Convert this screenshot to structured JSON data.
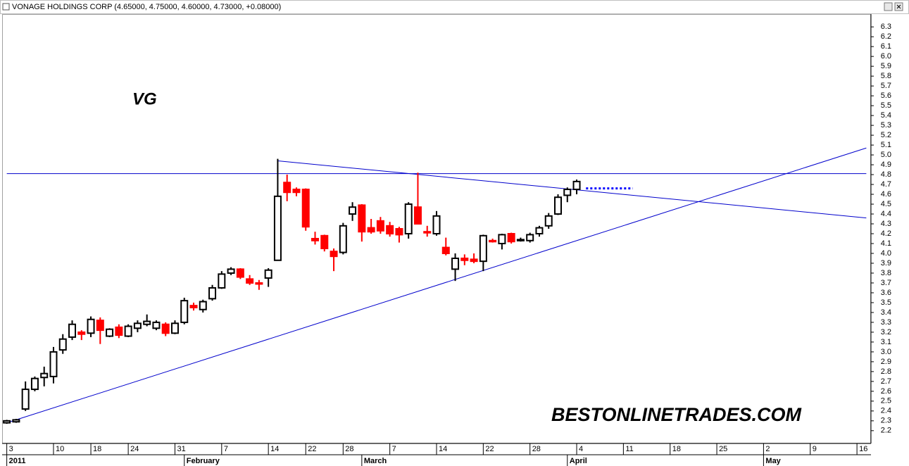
{
  "chart_data": {
    "type": "candlestick",
    "title": "VONAGE HOLDINGS CORP (4.65000, 4.75000, 4.60000, 4.73000, +0.08000)",
    "annotations": [
      {
        "text": "VG",
        "color": "#0000ff"
      },
      {
        "text": "BESTONLINETRADES.COM",
        "color": "#0000ff"
      }
    ],
    "categories": [
      "3",
      null,
      null,
      null,
      null,
      "10",
      null,
      null,
      null,
      "18",
      null,
      null,
      null,
      "24",
      null,
      null,
      null,
      null,
      "31",
      null,
      null,
      null,
      null,
      "7",
      null,
      null,
      null,
      null,
      "14",
      null,
      null,
      null,
      "22",
      null,
      null,
      null,
      "28",
      null,
      null,
      null,
      null,
      "7",
      null,
      null,
      null,
      null,
      "14",
      null,
      null,
      null,
      null,
      "22",
      null,
      null,
      null,
      null,
      "28",
      null,
      null,
      null,
      null,
      "4",
      null,
      null,
      null,
      null,
      "11",
      null,
      null,
      null,
      null,
      "18",
      null,
      null,
      null,
      null,
      "25",
      null,
      null,
      null,
      null,
      "2",
      null,
      null,
      null,
      null,
      "9",
      null,
      null,
      null,
      null,
      "16",
      null
    ],
    "category_groups": [
      "2011",
      null,
      null,
      null,
      null,
      null,
      null,
      null,
      null,
      null,
      null,
      null,
      null,
      null,
      null,
      null,
      null,
      null,
      null,
      "February",
      null,
      null,
      null,
      null,
      null,
      null,
      null,
      null,
      null,
      null,
      null,
      null,
      null,
      null,
      null,
      null,
      null,
      null,
      "March",
      null,
      null,
      null,
      null,
      null,
      null,
      null,
      null,
      null,
      null,
      null,
      null,
      null,
      null,
      null,
      null,
      null,
      null,
      null,
      null,
      null,
      "April",
      null,
      null,
      null,
      null,
      null,
      null,
      null,
      null,
      null,
      null,
      null,
      null,
      null,
      null,
      null,
      null,
      null,
      null,
      null,
      null,
      "May",
      null,
      null,
      null,
      null,
      null,
      null,
      null,
      null,
      null,
      null,
      null
    ],
    "ohlc": {
      "open": [
        2.28,
        2.29,
        2.42,
        2.62,
        2.74,
        2.75,
        3.02,
        3.15,
        3.2,
        3.19,
        3.32,
        3.16,
        3.25,
        3.16,
        3.24,
        3.28,
        3.24,
        3.28,
        3.19,
        3.3,
        3.47,
        3.43,
        3.54,
        3.65,
        3.8,
        3.84,
        3.74,
        3.7,
        3.75,
        3.93,
        4.72,
        4.65,
        4.65,
        4.15,
        4.18,
        4.02,
        4.01,
        4.4,
        4.49,
        4.26,
        4.33,
        4.28,
        4.25,
        4.2,
        4.47,
        4.22,
        4.2,
        4.06,
        3.84,
        3.95,
        3.94,
        3.92,
        4.13,
        4.1,
        4.2,
        4.14,
        4.13,
        4.2,
        4.28,
        4.4,
        4.59,
        4.65,
        null,
        null,
        null,
        null,
        null,
        null,
        null,
        null,
        null,
        null,
        null,
        null,
        null,
        null,
        null,
        null,
        null,
        null,
        null,
        null,
        null,
        null,
        null,
        null,
        null,
        null,
        null,
        null,
        null,
        null,
        null
      ],
      "high": [
        2.31,
        2.32,
        2.7,
        2.75,
        2.85,
        3.05,
        3.18,
        3.32,
        3.22,
        3.36,
        3.35,
        3.24,
        3.28,
        3.28,
        3.32,
        3.38,
        3.32,
        3.3,
        3.32,
        3.55,
        3.5,
        3.53,
        3.68,
        3.82,
        3.86,
        3.85,
        3.78,
        3.73,
        3.85,
        4.96,
        4.8,
        4.67,
        4.66,
        4.22,
        4.19,
        4.05,
        4.31,
        4.52,
        4.5,
        4.35,
        4.37,
        4.32,
        4.27,
        4.52,
        4.82,
        4.28,
        4.43,
        4.16,
        4.0,
        3.99,
        4.0,
        4.19,
        4.15,
        4.2,
        4.21,
        4.16,
        4.21,
        4.28,
        4.41,
        4.6,
        4.67,
        4.75,
        null,
        null,
        null,
        null,
        null,
        null,
        null,
        null,
        null,
        null,
        null,
        null,
        null,
        null,
        null,
        null,
        null,
        null,
        null,
        null,
        null,
        null,
        null,
        null,
        null,
        null,
        null,
        null,
        null,
        null,
        null
      ],
      "low": [
        2.27,
        2.28,
        2.4,
        2.6,
        2.65,
        2.68,
        2.98,
        3.12,
        3.12,
        3.15,
        3.08,
        3.15,
        3.14,
        3.15,
        3.2,
        3.26,
        3.22,
        3.16,
        3.18,
        3.28,
        3.42,
        3.4,
        3.52,
        3.64,
        3.78,
        3.74,
        3.68,
        3.63,
        3.66,
        3.93,
        4.53,
        4.58,
        4.23,
        4.09,
        4.02,
        3.82,
        3.99,
        4.33,
        4.12,
        4.2,
        4.2,
        4.17,
        4.11,
        4.15,
        4.3,
        4.17,
        4.18,
        3.98,
        3.72,
        3.88,
        3.9,
        3.82,
        4.11,
        4.04,
        4.1,
        4.12,
        4.11,
        4.17,
        4.25,
        4.39,
        4.52,
        4.6,
        null,
        null,
        null,
        null,
        null,
        null,
        null,
        null,
        null,
        null,
        null,
        null,
        null,
        null,
        null,
        null,
        null,
        null,
        null,
        null,
        null,
        null,
        null,
        null,
        null,
        null,
        null,
        null,
        null,
        null,
        null
      ],
      "close": [
        2.3,
        2.31,
        2.62,
        2.73,
        2.78,
        3.0,
        3.13,
        3.28,
        3.18,
        3.33,
        3.22,
        3.23,
        3.17,
        3.26,
        3.29,
        3.31,
        3.3,
        3.19,
        3.29,
        3.52,
        3.45,
        3.51,
        3.65,
        3.79,
        3.84,
        3.76,
        3.7,
        3.69,
        3.83,
        4.58,
        4.62,
        4.62,
        4.27,
        4.13,
        4.05,
        3.97,
        4.28,
        4.47,
        4.22,
        4.22,
        4.23,
        4.2,
        4.19,
        4.5,
        4.3,
        4.21,
        4.38,
        4.0,
        3.95,
        3.93,
        3.92,
        4.18,
        4.12,
        4.19,
        4.12,
        4.14,
        4.19,
        4.26,
        4.38,
        4.57,
        4.65,
        4.73,
        null,
        null,
        null,
        null,
        null,
        null,
        null,
        null,
        null,
        null,
        null,
        null,
        null,
        null,
        null,
        null,
        null,
        null,
        null,
        null,
        null,
        null,
        null,
        null,
        null,
        null,
        null,
        null,
        null,
        null,
        null
      ]
    },
    "up_color": "#ffffff",
    "down_color": "#ff0000",
    "outline_color": "#000000",
    "trend_lines": [
      {
        "x": [
          0,
          92
        ],
        "y": [
          2.28,
          5.07
        ],
        "color": "#0000cc",
        "style": "solid"
      },
      {
        "x": [
          29,
          92
        ],
        "y": [
          4.94,
          4.36
        ],
        "color": "#0000cc",
        "style": "solid"
      },
      {
        "x": [
          0,
          92
        ],
        "y": [
          4.81,
          4.81
        ],
        "color": "#0000cc",
        "style": "solid"
      },
      {
        "x": [
          62,
          67
        ],
        "y": [
          4.66,
          4.66
        ],
        "color": "#0000ff",
        "style": "dotted"
      }
    ],
    "ylim": [
      2.07,
      6.43
    ],
    "yticks": [
      2.2,
      2.3,
      2.4,
      2.5,
      2.6,
      2.7,
      2.8,
      2.9,
      {
        "value": 3,
        "label": "3.0"
      },
      3.1,
      3.2,
      3.3,
      3.4,
      3.5,
      3.6,
      3.7,
      3.8,
      3.9,
      {
        "value": 4,
        "label": "4.0"
      },
      4.1,
      4.2,
      4.3,
      4.4,
      4.5,
      4.6,
      4.7,
      4.8,
      4.9,
      {
        "value": 5,
        "label": "5.0"
      },
      5.1,
      5.2,
      5.3,
      5.4,
      5.5,
      5.6,
      5.7,
      5.8,
      5.9,
      {
        "value": 6,
        "label": "6.0"
      },
      6.1,
      6.2,
      6.3
    ],
    "y_axis_side": "right",
    "grid": false
  }
}
